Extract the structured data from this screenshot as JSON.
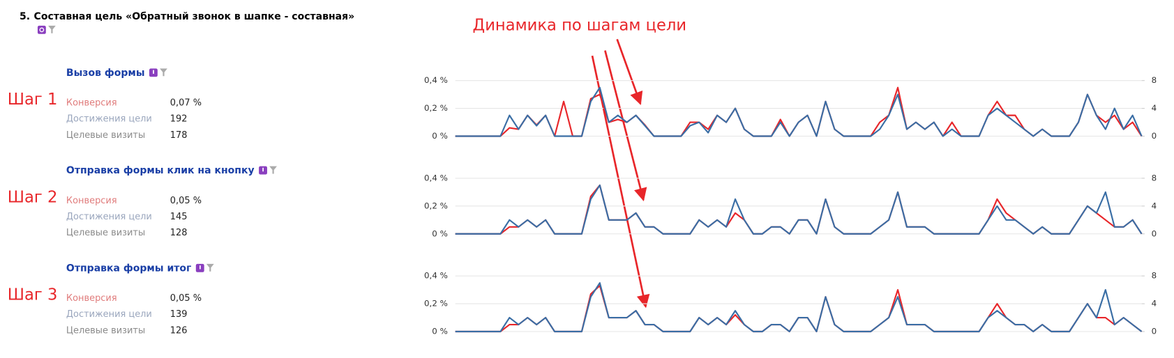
{
  "header": {
    "number": "5.",
    "title": "Составная цель «Обратный звонок в шапке - составная»"
  },
  "annotation": "Динамика по шагам цели",
  "steps": [
    {
      "label": "Шаг 1",
      "title": "Вызов формы",
      "metrics": [
        {
          "label": "Конверсия",
          "value": "0,07 %"
        },
        {
          "label": "Достижения цели",
          "value": 192
        },
        {
          "label": "Целевые визиты",
          "value": 178
        }
      ]
    },
    {
      "label": "Шаг 2",
      "title": "Отправка формы клик на кнопку",
      "metrics": [
        {
          "label": "Конверсия",
          "value": "0,05 %"
        },
        {
          "label": "Достижения цели",
          "value": 145
        },
        {
          "label": "Целевые визиты",
          "value": 128
        }
      ]
    },
    {
      "label": "Шаг 3",
      "title": "Отправка формы итог",
      "metrics": [
        {
          "label": "Конверсия",
          "value": "0,05 %"
        },
        {
          "label": "Достижения цели",
          "value": 139
        },
        {
          "label": "Целевые визиты",
          "value": 126
        }
      ]
    }
  ],
  "chart_data": [
    {
      "type": "line",
      "grid": true,
      "ylim": [
        0,
        0.4
      ],
      "yticks": [
        {
          "value": 0,
          "label": "0 %"
        },
        {
          "value": 0.2,
          "label": "0,2 %"
        },
        {
          "value": 0.4,
          "label": "0,4 %"
        }
      ],
      "y2lim": [
        0,
        8
      ],
      "y2ticks": [
        0,
        4,
        8
      ],
      "series": [
        {
          "color": "#e8262a",
          "values": [
            0,
            0,
            0,
            0,
            0,
            0,
            0.06,
            0.05,
            0.15,
            0.08,
            0.15,
            0,
            0.25,
            0,
            0,
            0.27,
            0.3,
            0.1,
            0.12,
            0.1,
            0.15,
            0.08,
            0,
            0,
            0,
            0,
            0.1,
            0.1,
            0.05,
            0.15,
            0.1,
            0.2,
            0.05,
            0,
            0,
            0,
            0.12,
            0,
            0.1,
            0.15,
            0,
            0.25,
            0.05,
            0,
            0,
            0,
            0,
            0.1,
            0.15,
            0.35,
            0.05,
            0.1,
            0.05,
            0.1,
            0,
            0.1,
            0,
            0,
            0,
            0.15,
            0.25,
            0.15,
            0.15,
            0.05,
            0,
            0.05,
            0,
            0,
            0,
            0.1,
            0.3,
            0.15,
            0.1,
            0.15,
            0.05,
            0.1,
            0
          ]
        },
        {
          "color": "#3a6ea5",
          "axis": "y2",
          "values": [
            0,
            0,
            0,
            0,
            0,
            0,
            3,
            1,
            3,
            1.5,
            3,
            0,
            0,
            0,
            0,
            5,
            7,
            2,
            3,
            2,
            3,
            1.5,
            0,
            0,
            0,
            0,
            1.5,
            2,
            0.5,
            3,
            2,
            4,
            1,
            0,
            0,
            0,
            2,
            0,
            2,
            3,
            0,
            5,
            1,
            0,
            0,
            0,
            0,
            1,
            3,
            6,
            1,
            2,
            1,
            2,
            0,
            1,
            0,
            0,
            0,
            3,
            4,
            3,
            2,
            1,
            0,
            1,
            0,
            0,
            0,
            2,
            6,
            3,
            1,
            4,
            1,
            3,
            0
          ]
        }
      ]
    },
    {
      "type": "line",
      "grid": true,
      "ylim": [
        0,
        0.4
      ],
      "yticks": [
        {
          "value": 0,
          "label": "0 %"
        },
        {
          "value": 0.2,
          "label": "0,2 %"
        },
        {
          "value": 0.4,
          "label": "0,4 %"
        }
      ],
      "y2lim": [
        0,
        8
      ],
      "y2ticks": [
        0,
        4,
        8
      ],
      "series": [
        {
          "color": "#e8262a",
          "values": [
            0,
            0,
            0,
            0,
            0,
            0,
            0.05,
            0.05,
            0.1,
            0.05,
            0.1,
            0,
            0,
            0,
            0,
            0.27,
            0.35,
            0.1,
            0.1,
            0.1,
            0.15,
            0.05,
            0.05,
            0,
            0,
            0,
            0,
            0.1,
            0.05,
            0.1,
            0.05,
            0.15,
            0.1,
            0,
            0,
            0.05,
            0.05,
            0,
            0.1,
            0.1,
            0,
            0.25,
            0.05,
            0,
            0,
            0,
            0,
            0.05,
            0.1,
            0.3,
            0.05,
            0.05,
            0.05,
            0,
            0,
            0,
            0,
            0,
            0,
            0.1,
            0.25,
            0.15,
            0.1,
            0.05,
            0,
            0.05,
            0,
            0,
            0,
            0.1,
            0.2,
            0.15,
            0.1,
            0.05,
            0.05,
            0.1,
            0
          ]
        },
        {
          "color": "#3a6ea5",
          "axis": "y2",
          "values": [
            0,
            0,
            0,
            0,
            0,
            0,
            2,
            1,
            2,
            1,
            2,
            0,
            0,
            0,
            0,
            5,
            7,
            2,
            2,
            2,
            3,
            1,
            1,
            0,
            0,
            0,
            0,
            2,
            1,
            2,
            1,
            5,
            2,
            0,
            0,
            1,
            1,
            0,
            2,
            2,
            0,
            5,
            1,
            0,
            0,
            0,
            0,
            1,
            2,
            6,
            1,
            1,
            1,
            0,
            0,
            0,
            0,
            0,
            0,
            2,
            4,
            2,
            2,
            1,
            0,
            1,
            0,
            0,
            0,
            2,
            4,
            3,
            6,
            1,
            1,
            2,
            0
          ]
        }
      ]
    },
    {
      "type": "line",
      "grid": true,
      "ylim": [
        0,
        0.4
      ],
      "yticks": [
        {
          "value": 0,
          "label": "0 %"
        },
        {
          "value": 0.2,
          "label": "0,2 %"
        },
        {
          "value": 0.4,
          "label": "0,4 %"
        }
      ],
      "y2lim": [
        0,
        8
      ],
      "y2ticks": [
        0,
        4,
        8
      ],
      "series": [
        {
          "color": "#e8262a",
          "values": [
            0,
            0,
            0,
            0,
            0,
            0,
            0.05,
            0.05,
            0.1,
            0.05,
            0.1,
            0,
            0,
            0,
            0,
            0.27,
            0.33,
            0.1,
            0.1,
            0.1,
            0.15,
            0.05,
            0.05,
            0,
            0,
            0,
            0,
            0.1,
            0.05,
            0.1,
            0.05,
            0.12,
            0.05,
            0,
            0,
            0.05,
            0.05,
            0,
            0.1,
            0.1,
            0,
            0.25,
            0.05,
            0,
            0,
            0,
            0,
            0.05,
            0.1,
            0.3,
            0.05,
            0.05,
            0.05,
            0,
            0,
            0,
            0,
            0,
            0,
            0.1,
            0.2,
            0.1,
            0.05,
            0.05,
            0,
            0.05,
            0,
            0,
            0,
            0.1,
            0.2,
            0.1,
            0.1,
            0.05,
            0.1,
            0.05,
            0
          ]
        },
        {
          "color": "#3a6ea5",
          "axis": "y2",
          "values": [
            0,
            0,
            0,
            0,
            0,
            0,
            2,
            1,
            2,
            1,
            2,
            0,
            0,
            0,
            0,
            5,
            7,
            2,
            2,
            2,
            3,
            1,
            1,
            0,
            0,
            0,
            0,
            2,
            1,
            2,
            1,
            3,
            1,
            0,
            0,
            1,
            1,
            0,
            2,
            2,
            0,
            5,
            1,
            0,
            0,
            0,
            0,
            1,
            2,
            5,
            1,
            1,
            1,
            0,
            0,
            0,
            0,
            0,
            0,
            2,
            3,
            2,
            1,
            1,
            0,
            1,
            0,
            0,
            0,
            2,
            4,
            2,
            6,
            1,
            2,
            1,
            0
          ]
        }
      ]
    }
  ]
}
